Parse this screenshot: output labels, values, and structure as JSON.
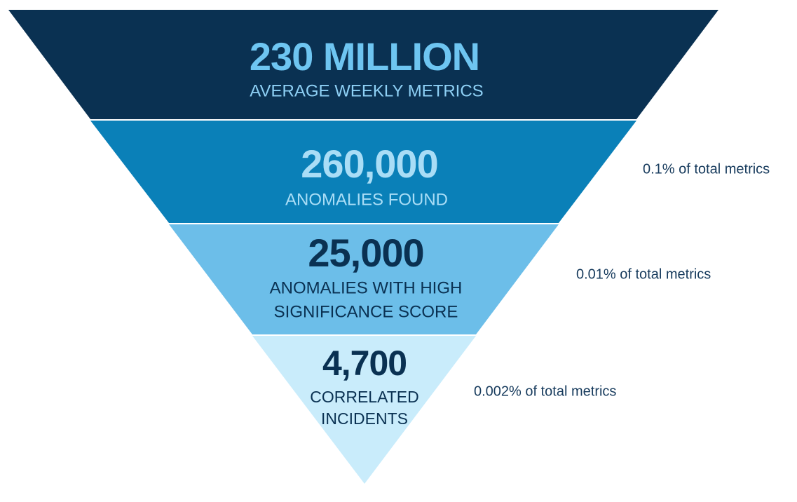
{
  "layers": [
    {
      "value": "230 MILLION",
      "label": [
        "AVERAGE WEEKLY METRICS"
      ]
    },
    {
      "value": "260,000",
      "label": [
        "ANOMALIES FOUND"
      ],
      "note": "0.1% of total metrics"
    },
    {
      "value": "25,000",
      "label": [
        "ANOMALIES WITH HIGH",
        "SIGNIFICANCE SCORE"
      ],
      "note": "0.01% of total metrics"
    },
    {
      "value": "4,700",
      "label": [
        "CORRELATED",
        "INCIDENTS"
      ],
      "note": "0.002% of total metrics"
    }
  ]
}
